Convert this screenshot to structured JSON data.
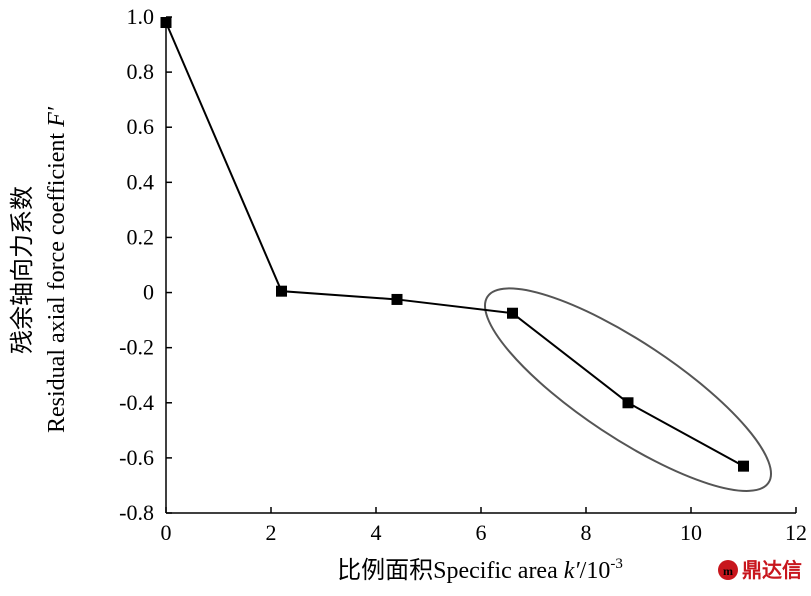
{
  "chart_data": {
    "type": "line",
    "title": "",
    "xlabel_cn": "比例面积",
    "xlabel_en_prefix": "Specific area ",
    "xlabel_var": "k′",
    "xlabel_unit": "/10",
    "xlabel_exp": "-3",
    "ylabel_cn": "残余轴向力系数",
    "ylabel_en_prefix": "Residual axial force coefficient ",
    "ylabel_var": "F′",
    "x_ticks": [
      "0",
      "2",
      "4",
      "6",
      "8",
      "10",
      "12"
    ],
    "y_ticks": [
      "-0.8",
      "-0.6",
      "-0.4",
      "-0.2",
      "0",
      "0.2",
      "0.4",
      "0.6",
      "0.8",
      "1.0"
    ],
    "xlim": [
      0,
      12
    ],
    "ylim": [
      -0.8,
      1.0
    ],
    "grid": false,
    "marker": "square",
    "series": [
      {
        "x": [
          0,
          2.2,
          4.4,
          6.6,
          8.8,
          11.0
        ],
        "y": [
          0.98,
          0.005,
          -0.025,
          -0.075,
          -0.4,
          -0.63
        ]
      }
    ],
    "annotation": {
      "shape": "ellipse",
      "encloses_x": [
        6.6,
        8.8,
        11.0
      ],
      "color": "#555555"
    }
  },
  "watermark": {
    "text": "鼎达信",
    "color": "#c8161d"
  }
}
